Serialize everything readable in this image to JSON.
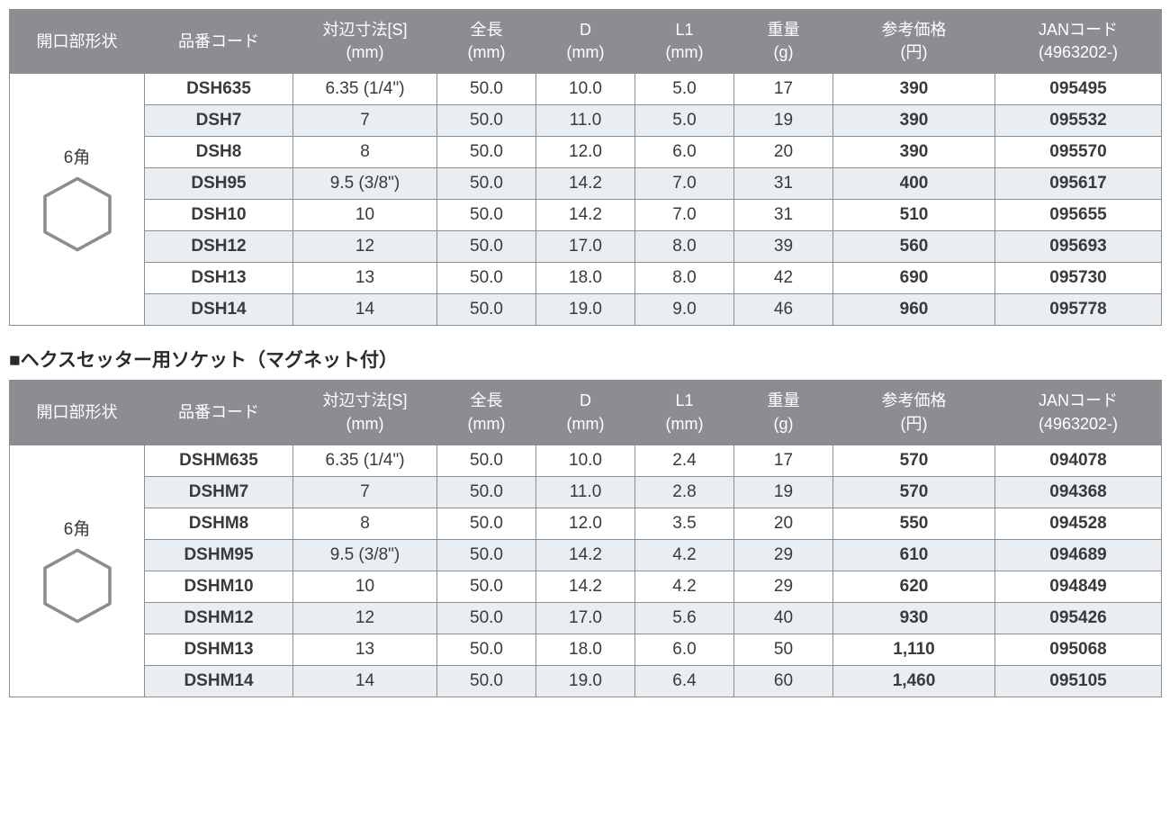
{
  "colors": {
    "header_bg": "#8b8d91",
    "header_fg": "#ffffff",
    "border": "#8b8d91",
    "row_alt_bg": "#e8eef2",
    "text": "#3a3a3a",
    "hex_stroke": "#8b8d91",
    "hex_stroke_width": 4
  },
  "typography": {
    "header_fontsize_pt": 14,
    "cell_fontsize_pt": 14,
    "section_title_fontsize_pt": 16,
    "bold_cols": [
      "code",
      "price",
      "jan"
    ]
  },
  "columns": [
    {
      "key": "shape",
      "label": "開口部形状"
    },
    {
      "key": "code",
      "label": "品番コード"
    },
    {
      "key": "s",
      "label": "対辺寸法[S]\n(mm)"
    },
    {
      "key": "len",
      "label": "全長\n(mm)"
    },
    {
      "key": "d",
      "label": "D\n(mm)"
    },
    {
      "key": "l1",
      "label": "L1\n(mm)"
    },
    {
      "key": "w",
      "label": "重量\n(g)"
    },
    {
      "key": "price",
      "label": "参考価格\n(円)"
    },
    {
      "key": "jan",
      "label": "JANコード\n(4963202-)"
    }
  ],
  "tables": [
    {
      "section_title": null,
      "shape_label": "6角",
      "shape_icon": "hexagon",
      "rows": [
        {
          "code": "DSH635",
          "s": "6.35 (1/4\")",
          "len": "50.0",
          "d": "10.0",
          "l1": "5.0",
          "w": "17",
          "price": "390",
          "jan": "095495"
        },
        {
          "code": "DSH7",
          "s": "7",
          "len": "50.0",
          "d": "11.0",
          "l1": "5.0",
          "w": "19",
          "price": "390",
          "jan": "095532"
        },
        {
          "code": "DSH8",
          "s": "8",
          "len": "50.0",
          "d": "12.0",
          "l1": "6.0",
          "w": "20",
          "price": "390",
          "jan": "095570"
        },
        {
          "code": "DSH95",
          "s": "9.5 (3/8\")",
          "len": "50.0",
          "d": "14.2",
          "l1": "7.0",
          "w": "31",
          "price": "400",
          "jan": "095617"
        },
        {
          "code": "DSH10",
          "s": "10",
          "len": "50.0",
          "d": "14.2",
          "l1": "7.0",
          "w": "31",
          "price": "510",
          "jan": "095655"
        },
        {
          "code": "DSH12",
          "s": "12",
          "len": "50.0",
          "d": "17.0",
          "l1": "8.0",
          "w": "39",
          "price": "560",
          "jan": "095693"
        },
        {
          "code": "DSH13",
          "s": "13",
          "len": "50.0",
          "d": "18.0",
          "l1": "8.0",
          "w": "42",
          "price": "690",
          "jan": "095730"
        },
        {
          "code": "DSH14",
          "s": "14",
          "len": "50.0",
          "d": "19.0",
          "l1": "9.0",
          "w": "46",
          "price": "960",
          "jan": "095778"
        }
      ]
    },
    {
      "section_title": "■ヘクスセッター用ソケット（マグネット付）",
      "shape_label": "6角",
      "shape_icon": "hexagon",
      "rows": [
        {
          "code": "DSHM635",
          "s": "6.35 (1/4\")",
          "len": "50.0",
          "d": "10.0",
          "l1": "2.4",
          "w": "17",
          "price": "570",
          "jan": "094078"
        },
        {
          "code": "DSHM7",
          "s": "7",
          "len": "50.0",
          "d": "11.0",
          "l1": "2.8",
          "w": "19",
          "price": "570",
          "jan": "094368"
        },
        {
          "code": "DSHM8",
          "s": "8",
          "len": "50.0",
          "d": "12.0",
          "l1": "3.5",
          "w": "20",
          "price": "550",
          "jan": "094528"
        },
        {
          "code": "DSHM95",
          "s": "9.5 (3/8\")",
          "len": "50.0",
          "d": "14.2",
          "l1": "4.2",
          "w": "29",
          "price": "610",
          "jan": "094689"
        },
        {
          "code": "DSHM10",
          "s": "10",
          "len": "50.0",
          "d": "14.2",
          "l1": "4.2",
          "w": "29",
          "price": "620",
          "jan": "094849"
        },
        {
          "code": "DSHM12",
          "s": "12",
          "len": "50.0",
          "d": "17.0",
          "l1": "5.6",
          "w": "40",
          "price": "930",
          "jan": "095426"
        },
        {
          "code": "DSHM13",
          "s": "13",
          "len": "50.0",
          "d": "18.0",
          "l1": "6.0",
          "w": "50",
          "price": "1,110",
          "jan": "095068"
        },
        {
          "code": "DSHM14",
          "s": "14",
          "len": "50.0",
          "d": "19.0",
          "l1": "6.4",
          "w": "60",
          "price": "1,460",
          "jan": "095105"
        }
      ]
    }
  ]
}
